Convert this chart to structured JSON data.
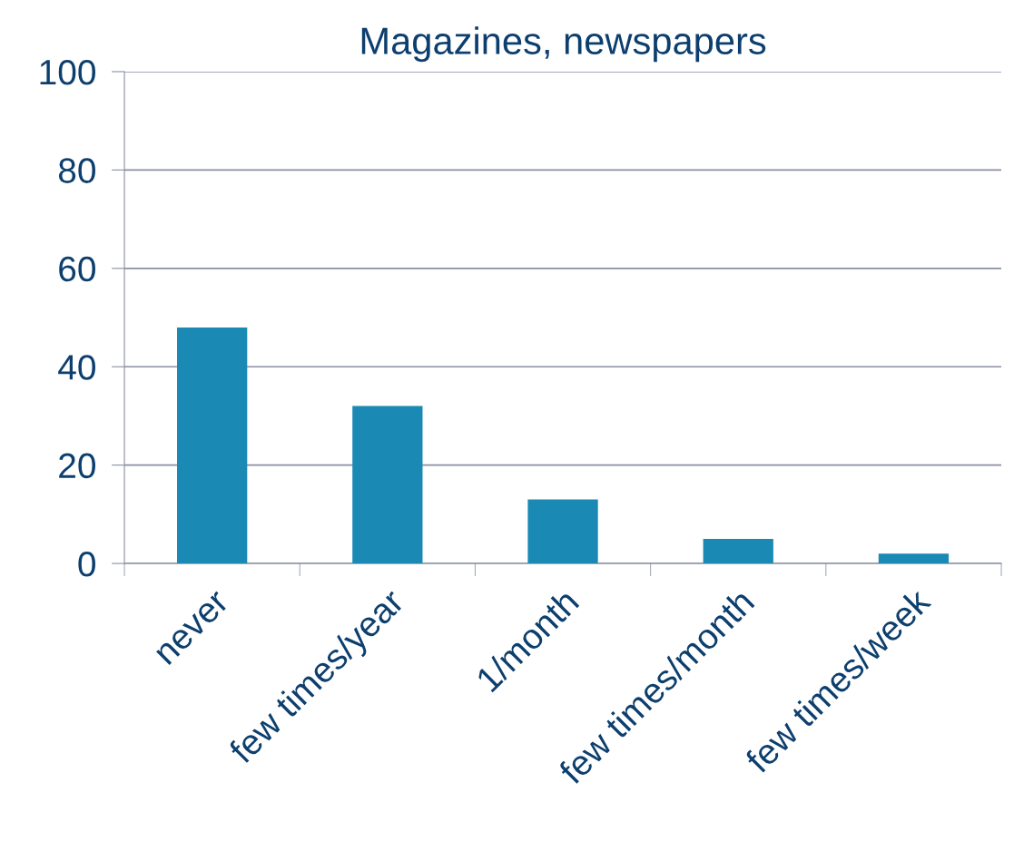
{
  "chart_data": {
    "type": "bar",
    "title": "Magazines, newspapers",
    "categories": [
      "never",
      "few times/year",
      "1/month",
      "few times/month",
      "few times/week"
    ],
    "values": [
      48,
      32,
      13,
      5,
      2
    ],
    "color": "#1a8ab4",
    "ylim": [
      0,
      100
    ],
    "yticks": [
      0,
      20,
      40,
      60,
      80,
      100
    ],
    "grid": "y",
    "legend": false
  }
}
